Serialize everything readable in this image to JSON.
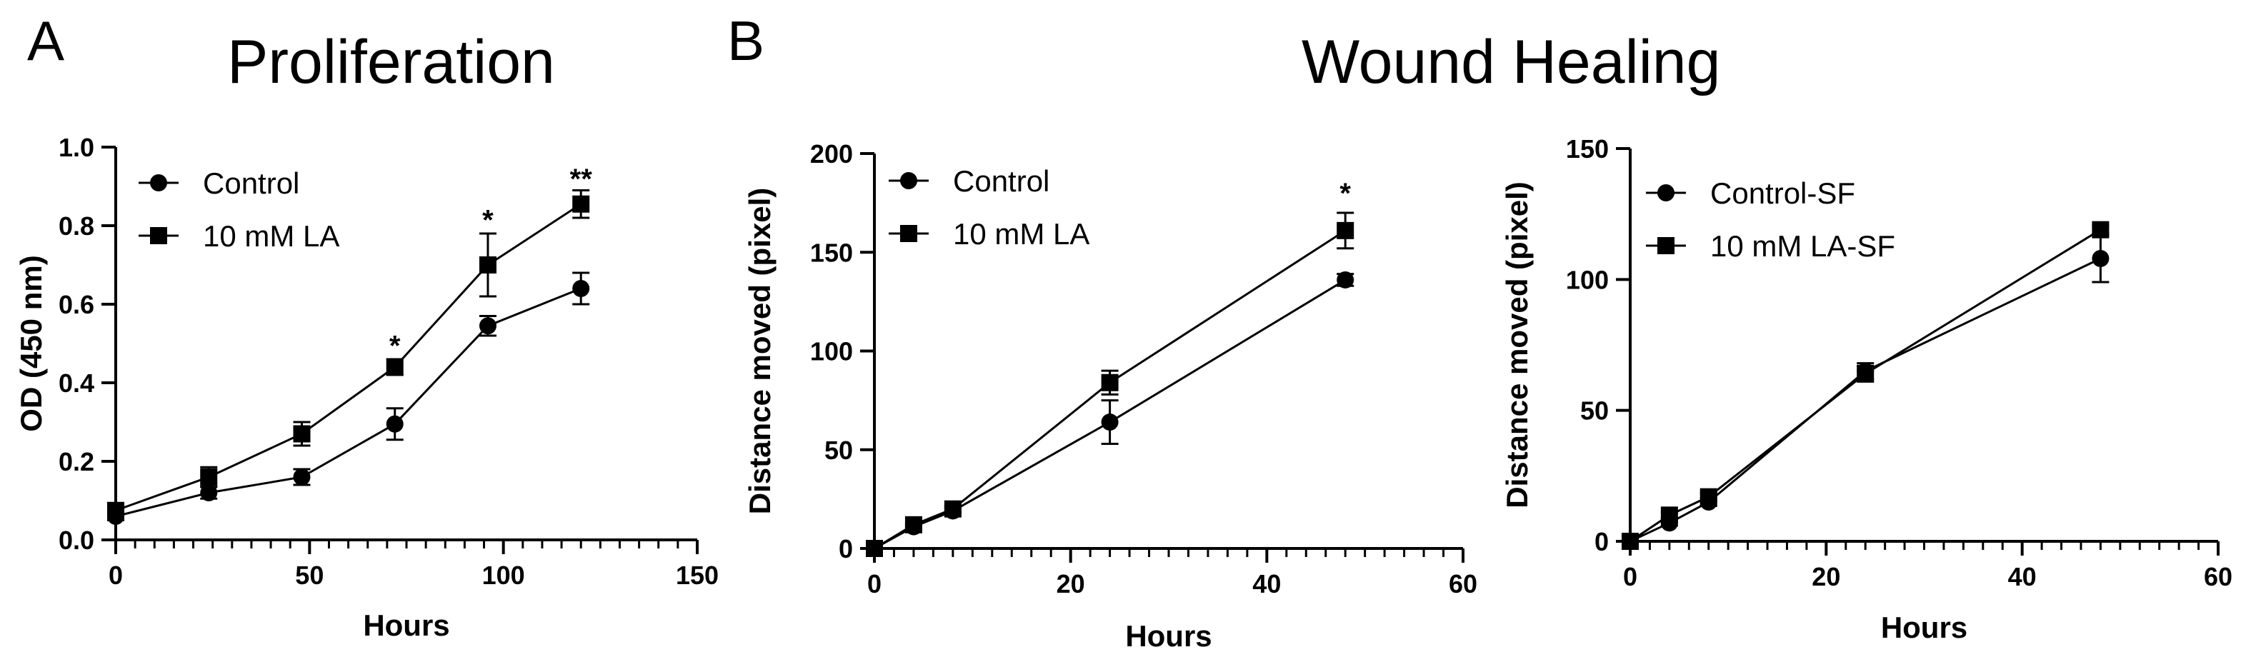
{
  "figure": {
    "panel_a_letter": "A",
    "panel_b_letter": "B",
    "panel_a_title": "Proliferation",
    "panel_b_title": "Wound Healing"
  },
  "chart_data": [
    {
      "type": "line",
      "title": "Proliferation",
      "xlabel": "Hours",
      "ylabel": "OD (450 nm)",
      "xlim": [
        0,
        150
      ],
      "ylim": [
        0,
        1.0
      ],
      "xticks": [
        0,
        50,
        100,
        150
      ],
      "yticks": [
        0.0,
        0.2,
        0.4,
        0.6,
        0.8,
        1.0
      ],
      "ytick_labels": [
        "0.0",
        "0.2",
        "0.4",
        "0.6",
        "0.8",
        "1.0"
      ],
      "minor_xtick_step": 5,
      "legend_position": "top-left",
      "series": [
        {
          "name": "Control",
          "marker": "circle",
          "x": [
            0,
            24,
            48,
            72,
            96,
            120
          ],
          "y": [
            0.06,
            0.12,
            0.16,
            0.295,
            0.545,
            0.64
          ],
          "err": [
            0.01,
            0.015,
            0.02,
            0.04,
            0.025,
            0.04
          ]
        },
        {
          "name": "10 mM LA",
          "marker": "square",
          "x": [
            0,
            24,
            48,
            72,
            96,
            120
          ],
          "y": [
            0.075,
            0.16,
            0.27,
            0.44,
            0.7,
            0.855
          ],
          "err": [
            0.01,
            0.025,
            0.03,
            0.02,
            0.08,
            0.035
          ]
        }
      ],
      "annotations": [
        {
          "x": 72,
          "y": 0.47,
          "text": "*"
        },
        {
          "x": 96,
          "y": 0.79,
          "text": "*"
        },
        {
          "x": 120,
          "y": 0.895,
          "text": "**"
        }
      ]
    },
    {
      "type": "line",
      "title": "",
      "xlabel": "Hours",
      "ylabel": "Distance moved (pixel)",
      "xlim": [
        0,
        60
      ],
      "ylim": [
        0,
        200
      ],
      "xticks": [
        0,
        20,
        40,
        60
      ],
      "yticks": [
        0,
        50,
        100,
        150,
        200
      ],
      "ytick_labels": [
        "0",
        "50",
        "100",
        "150",
        "200"
      ],
      "minor_xtick_step": 2,
      "legend_position": "top-left",
      "series": [
        {
          "name": "Control",
          "marker": "circle",
          "x": [
            0,
            4,
            8,
            24,
            48
          ],
          "y": [
            0,
            11,
            19,
            64,
            136
          ],
          "err": [
            0,
            1,
            1.5,
            11,
            3
          ]
        },
        {
          "name": "10 mM LA",
          "marker": "square",
          "x": [
            0,
            4,
            8,
            24,
            48
          ],
          "y": [
            0,
            12,
            20,
            84,
            161
          ],
          "err": [
            0,
            1,
            1.5,
            6,
            9
          ]
        }
      ],
      "annotations": [
        {
          "x": 48,
          "y": 175,
          "text": "*"
        }
      ]
    },
    {
      "type": "line",
      "title": "",
      "xlabel": "Hours",
      "ylabel": "Distance moved (pixel)",
      "xlim": [
        0,
        60
      ],
      "ylim": [
        0,
        150
      ],
      "xticks": [
        0,
        20,
        40,
        60
      ],
      "yticks": [
        0,
        50,
        100,
        150
      ],
      "ytick_labels": [
        "0",
        "50",
        "100",
        "150"
      ],
      "minor_xtick_step": 2,
      "legend_position": "top-left",
      "series": [
        {
          "name": "Control-SF",
          "marker": "circle",
          "x": [
            0,
            4,
            8,
            24,
            48
          ],
          "y": [
            0,
            7,
            15,
            65,
            108
          ],
          "err": [
            0,
            1,
            1.5,
            3,
            9
          ]
        },
        {
          "name": "10 mM LA-SF",
          "marker": "square",
          "x": [
            0,
            4,
            8,
            24,
            48
          ],
          "y": [
            0,
            10,
            17,
            64,
            119
          ],
          "err": [
            0,
            1,
            1.5,
            3,
            1.5
          ]
        }
      ],
      "annotations": []
    }
  ]
}
